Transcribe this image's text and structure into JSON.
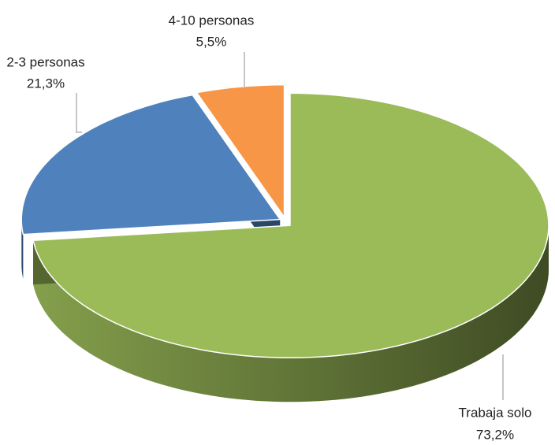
{
  "chart_data": {
    "type": "pie",
    "categories": [
      "Trabaja solo",
      "2-3 personas",
      "4-10 personas"
    ],
    "values": [
      73.2,
      21.3,
      5.5
    ],
    "value_labels": [
      "73,2%",
      "21,3%",
      "5,5%"
    ],
    "colors": [
      "#9bbb59",
      "#4f81bd",
      "#f79646"
    ]
  }
}
